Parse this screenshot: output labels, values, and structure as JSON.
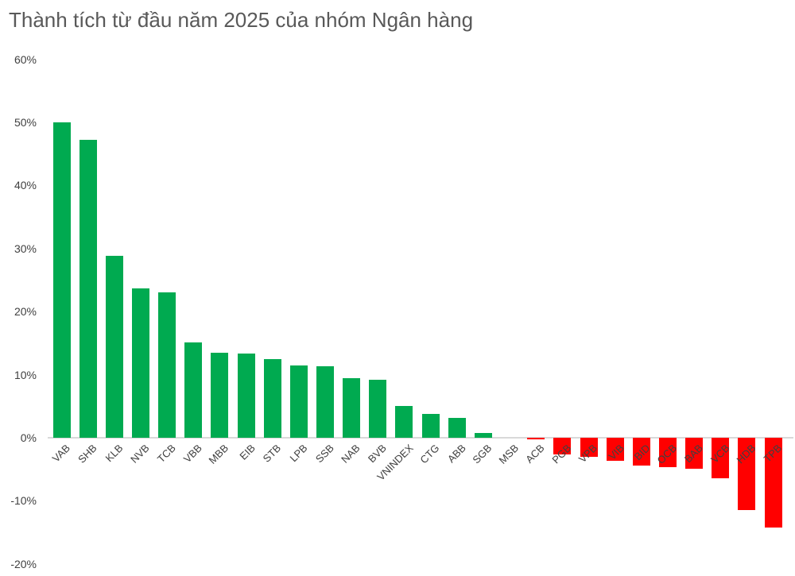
{
  "chart_data": {
    "type": "bar",
    "title": "Thành tích từ đầu năm 2025 của nhóm Ngân hàng",
    "categories": [
      "VAB",
      "SHB",
      "KLB",
      "NVB",
      "TCB",
      "VBB",
      "MBB",
      "EIB",
      "STB",
      "LPB",
      "SSB",
      "NAB",
      "BVB",
      "VNINDEX",
      "CTG",
      "ABB",
      "SGB",
      "MSB",
      "ACB",
      "PGB",
      "VPB",
      "VIB",
      "BID",
      "OCB",
      "BAB",
      "VCB",
      "HDB",
      "TPB"
    ],
    "values": [
      50.0,
      47.2,
      28.9,
      23.7,
      23.0,
      15.1,
      13.5,
      13.4,
      12.5,
      11.5,
      11.3,
      9.4,
      9.2,
      5.1,
      3.8,
      3.2,
      0.8,
      0.0,
      -0.3,
      -2.7,
      -3.0,
      -3.7,
      -4.4,
      -4.6,
      -4.9,
      -6.4,
      -11.4,
      -14.2
    ],
    "xlabel": "",
    "ylabel": "",
    "ylim": [
      -20,
      60
    ],
    "y_ticks": [
      "60%",
      "50%",
      "40%",
      "30%",
      "20%",
      "10%",
      "0%",
      "-10%",
      "-20%"
    ],
    "grid": false,
    "legend_position": "none",
    "colors": {
      "positive": "#00AA50",
      "negative": "#FF0000",
      "title": "#595959",
      "tick_label": "#404040",
      "axis_line": "#D9D9D9"
    }
  }
}
